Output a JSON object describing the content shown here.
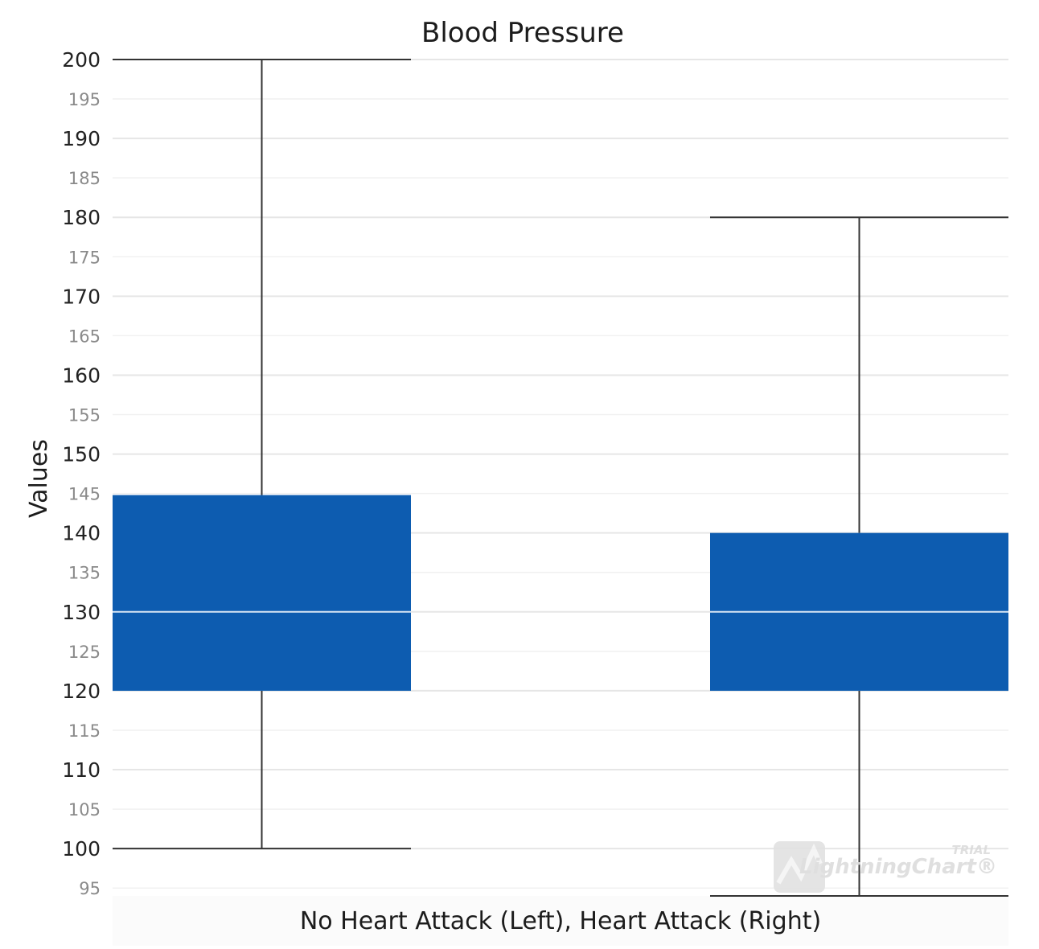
{
  "chart_data": {
    "type": "box",
    "title": "Blood Pressure",
    "xlabel": "No Heart Attack (Left), Heart Attack (Right)",
    "ylabel": "Values",
    "ylim": [
      94,
      200
    ],
    "y_ticks_major": [
      100,
      110,
      120,
      130,
      140,
      150,
      160,
      170,
      180,
      190,
      200
    ],
    "y_ticks_minor": [
      95,
      105,
      115,
      125,
      135,
      145,
      155,
      165,
      175,
      185,
      195
    ],
    "grid": true,
    "colors": {
      "box": "#0d5cb0",
      "median": "#d8e6f5",
      "whisker": "#333333",
      "grid": "#e6e6e6"
    },
    "series": [
      {
        "category": "No Heart Attack",
        "whisker_low": 100,
        "q1": 120,
        "median": 130,
        "q3": 144.8,
        "whisker_high": 200
      },
      {
        "category": "Heart Attack",
        "whisker_low": 94,
        "q1": 120,
        "median": 130,
        "q3": 140,
        "whisker_high": 180
      }
    ],
    "watermark": {
      "small": "TRIAL",
      "brand": "LightningChart®"
    }
  }
}
